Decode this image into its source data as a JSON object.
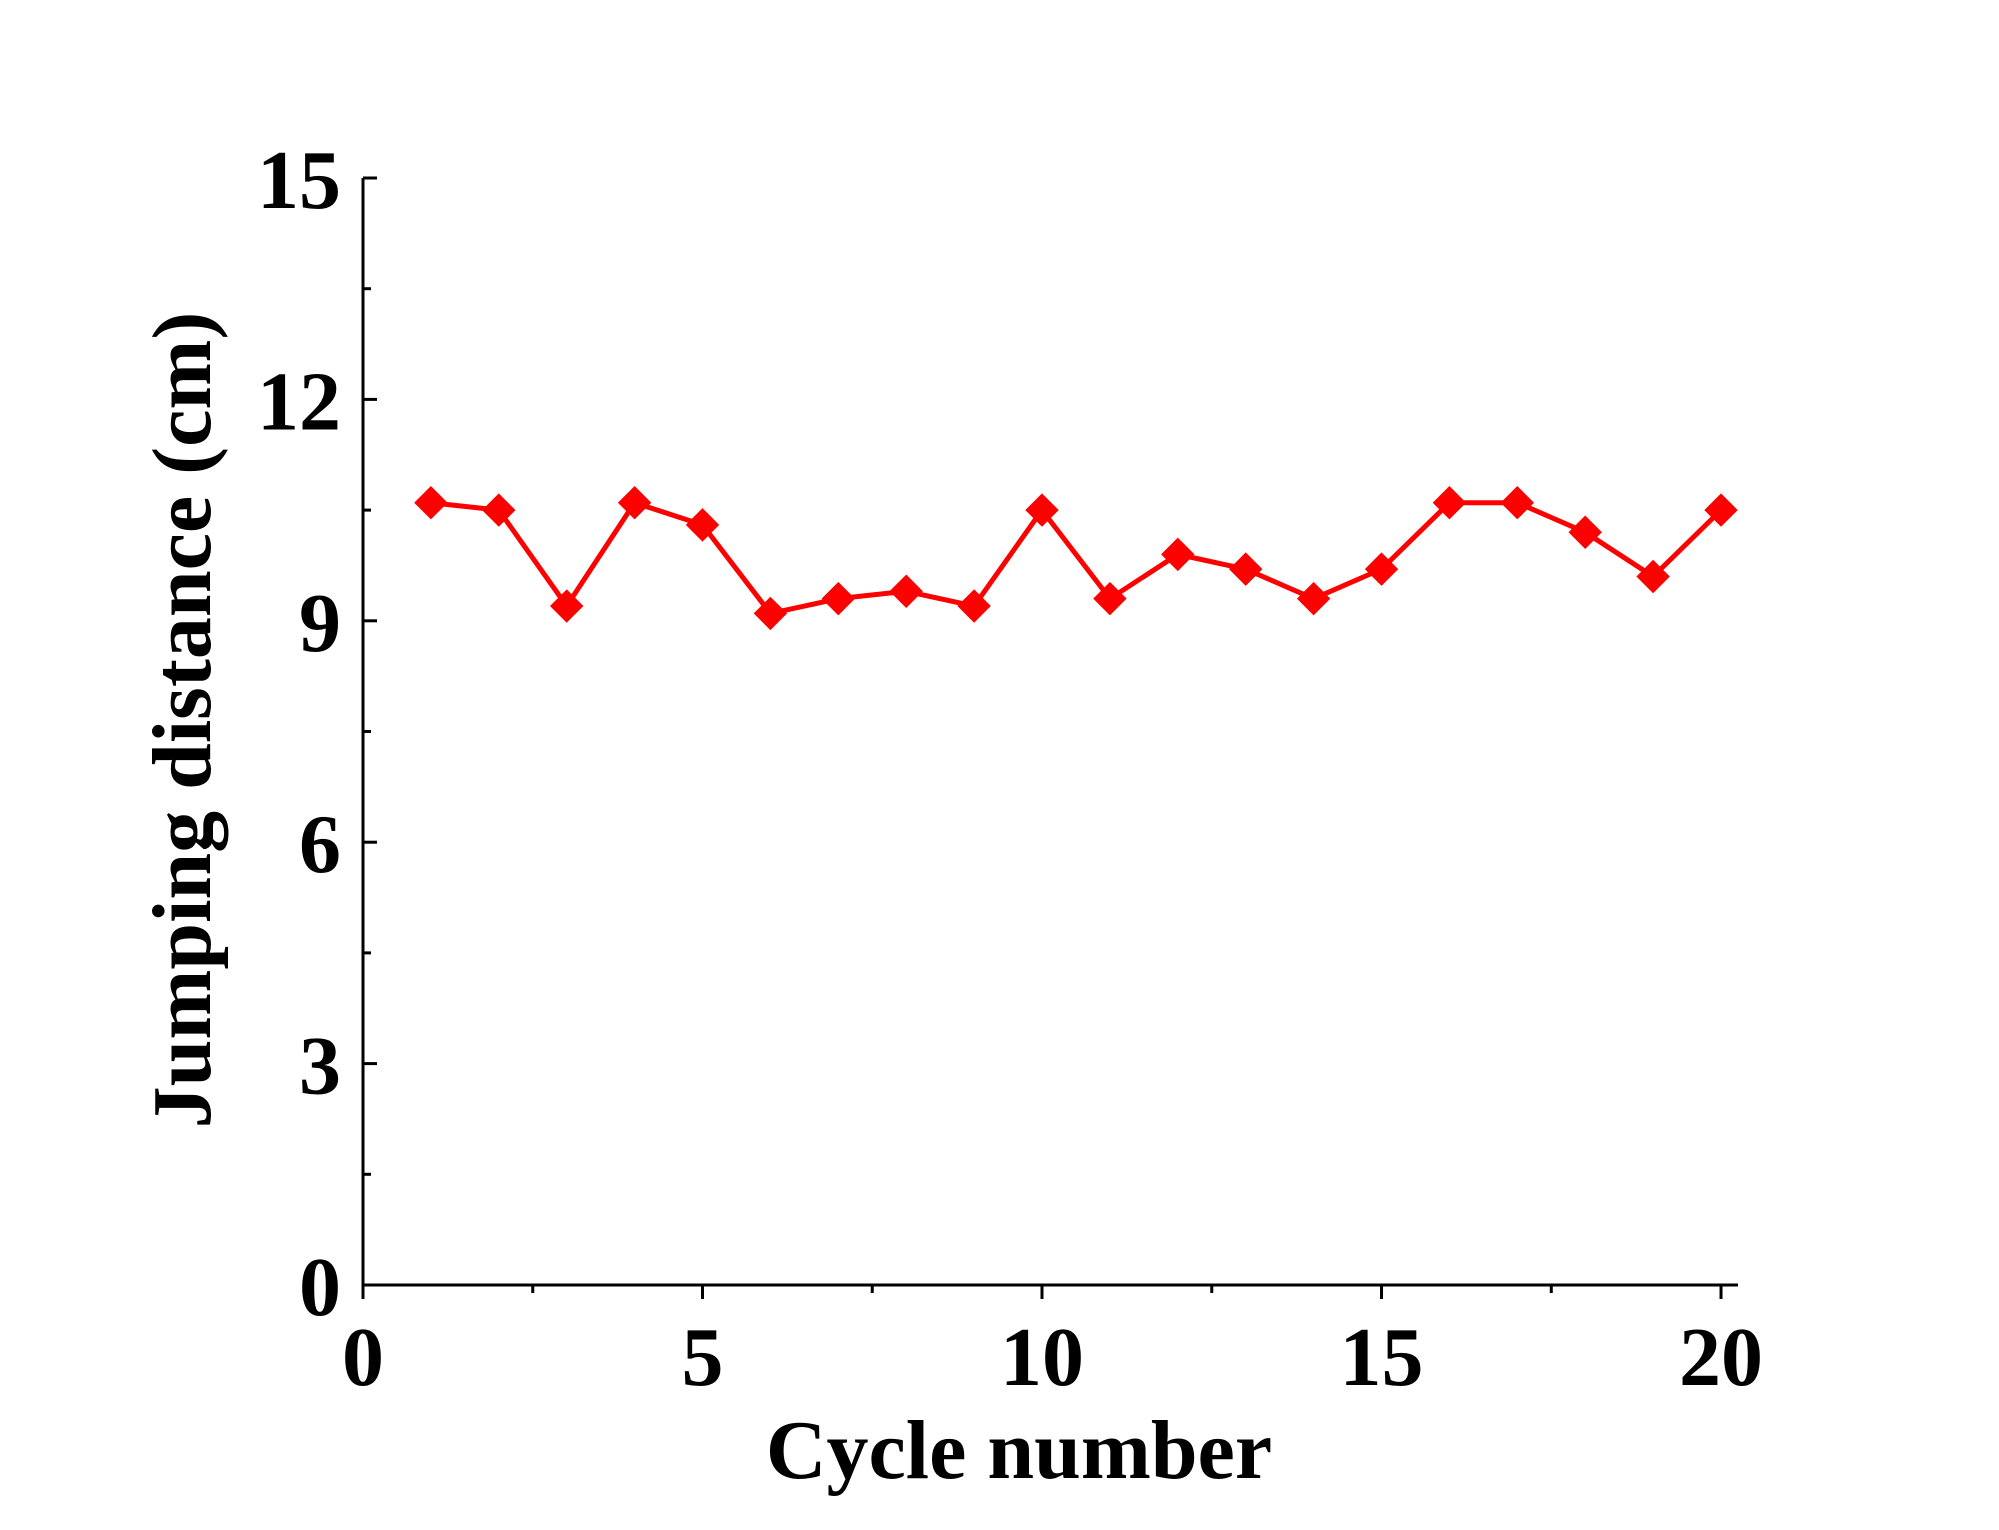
{
  "chart_data": {
    "type": "line",
    "title": "",
    "xlabel": "Cycle number",
    "ylabel": "Jumping distance (cm)",
    "xlim": [
      0,
      20.25
    ],
    "ylim": [
      0,
      15
    ],
    "x_ticks": [
      0,
      5,
      10,
      15,
      20
    ],
    "x_minor_ticks": [
      2.5,
      7.5,
      12.5,
      17.5
    ],
    "y_ticks": [
      0,
      3,
      6,
      9,
      12,
      15
    ],
    "y_minor_ticks": [
      1.5,
      4.5,
      7.5,
      10.5,
      13.5
    ],
    "x_tick_labels": [
      "0",
      "5",
      "10",
      "15",
      "20"
    ],
    "y_tick_labels": [
      "0",
      "3",
      "6",
      "9",
      "12",
      "15"
    ],
    "grid": false,
    "legend": "none",
    "series": [
      {
        "color": "#ff0000",
        "marker": "diamond",
        "x": [
          1,
          2,
          3,
          4,
          5,
          6,
          7,
          8,
          9,
          10,
          11,
          12,
          13,
          14,
          15,
          16,
          17,
          18,
          19,
          20
        ],
        "y": [
          10.6,
          10.5,
          9.2,
          10.6,
          10.3,
          9.1,
          9.3,
          9.4,
          9.2,
          10.5,
          9.3,
          9.9,
          9.7,
          9.3,
          9.7,
          10.6,
          10.6,
          10.2,
          9.6,
          10.5
        ]
      }
    ]
  }
}
